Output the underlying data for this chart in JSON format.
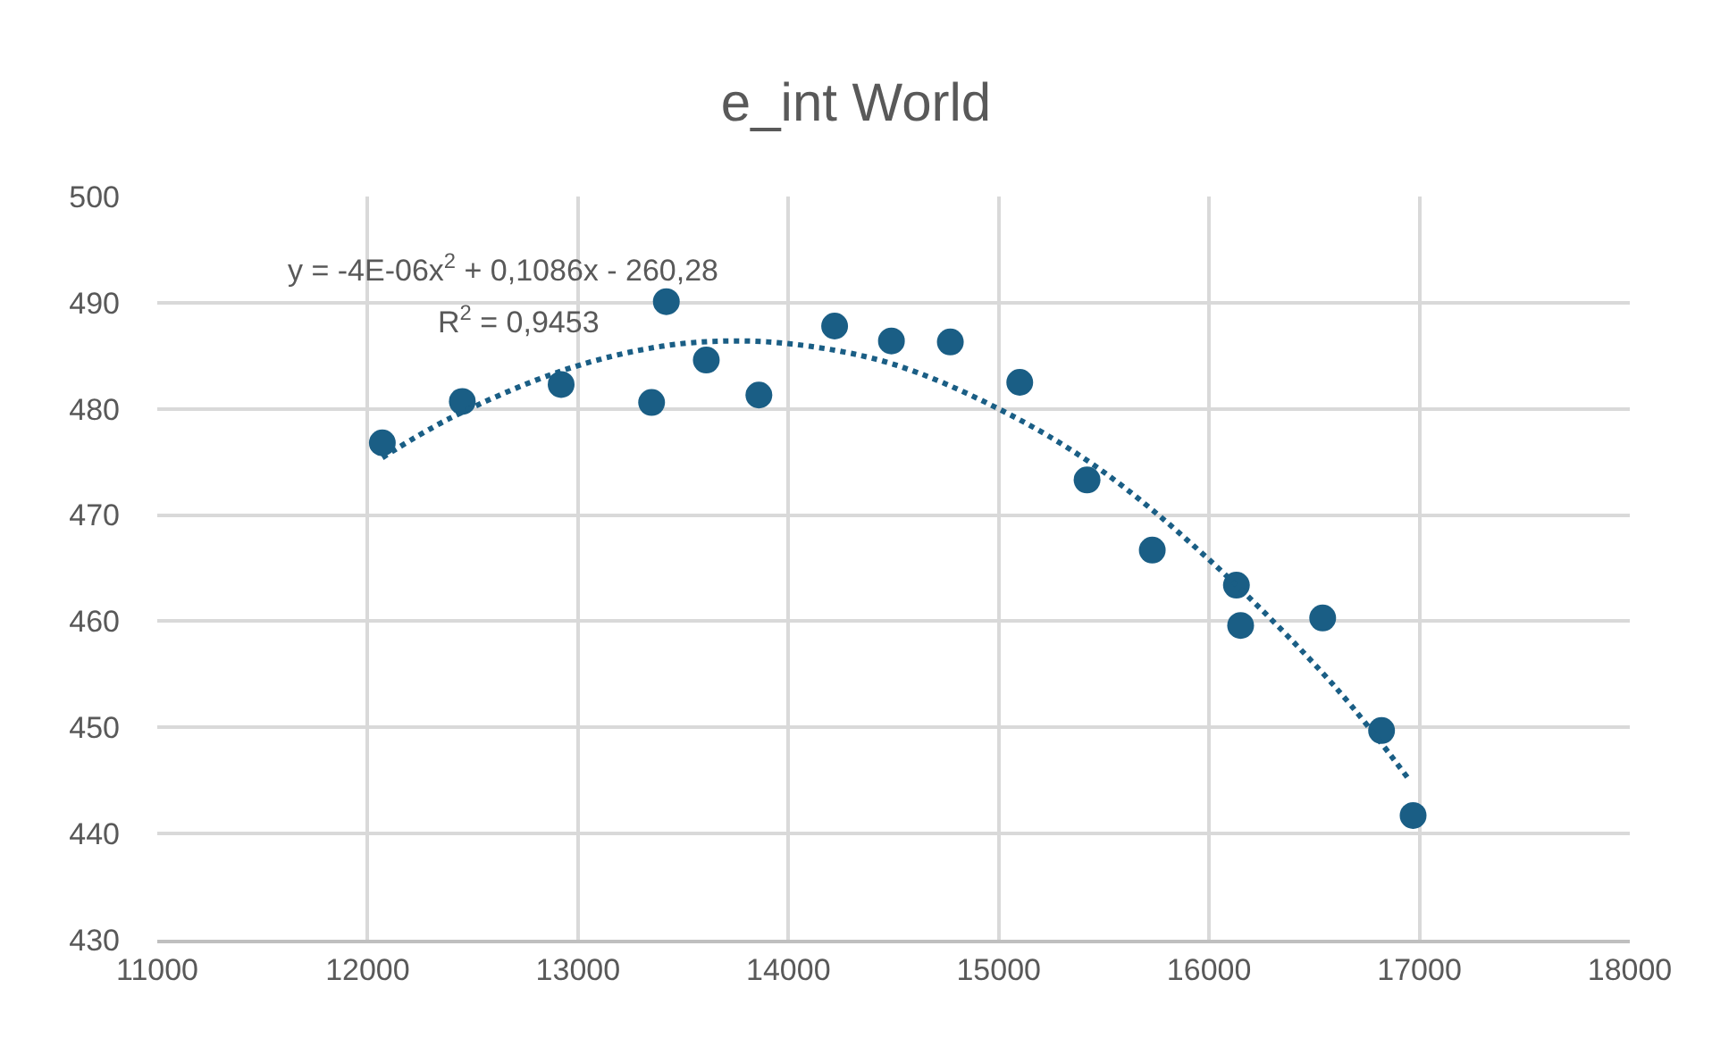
{
  "chart_data": {
    "type": "scatter",
    "title": "e_int World",
    "marker": "circle",
    "grid": true,
    "xlim": [
      11000,
      18000
    ],
    "xticks": [
      11000,
      12000,
      13000,
      14000,
      15000,
      16000,
      17000,
      18000
    ],
    "ylim": [
      430,
      500
    ],
    "yticks": [
      430,
      440,
      450,
      460,
      470,
      480,
      490,
      500
    ],
    "annotations": [
      "y = -4E-06x$^{2}$ + 0,1086x - 260,28",
      "R$^{2}$ = 0,9453"
    ],
    "series": [
      {
        "color": "#1a5e85",
        "x": [
          12070,
          12450,
          12920,
          13350,
          13420,
          13610,
          13860,
          14220,
          14490,
          14770,
          15100,
          15420,
          15730,
          16130,
          16150,
          16540,
          16820,
          16970
        ],
        "values": [
          476.8,
          480.7,
          482.3,
          480.6,
          490.1,
          484.6,
          481.3,
          487.8,
          486.4,
          486.3,
          482.5,
          473.3,
          466.7,
          463.4,
          459.6,
          460.3,
          449.7,
          441.7
        ]
      },
      {
        "type": "line",
        "color": "#1a5e85",
        "line_style": "dotted",
        "marker": "none",
        "x": [
          12070,
          12390,
          12940,
          13400,
          13760,
          14100,
          14500,
          14980,
          15460,
          16000,
          16600,
          16950
        ],
        "values": [
          475.4,
          479.1,
          483.7,
          485.9,
          486.4,
          485.9,
          484.2,
          480.2,
          474.6,
          465.8,
          453.8,
          445.1
        ]
      }
    ]
  }
}
